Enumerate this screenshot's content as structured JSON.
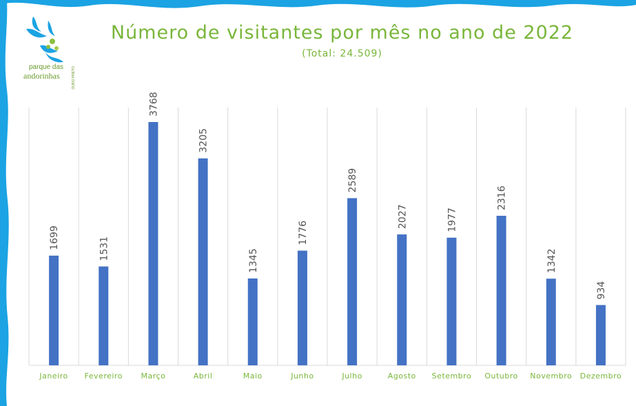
{
  "header": {
    "title": "Número de visitantes por mês no ano de 2022",
    "subtitle": "(Total: 24.509)"
  },
  "logo": {
    "line1": "parque das",
    "line2": "andorinhas",
    "line3": "OURO PRETO",
    "icon": "swallows-logo-icon"
  },
  "colors": {
    "bar": "#4472c4",
    "title": "#79b63a",
    "frame": "#1ba3e3",
    "grid": "#d9d9d9"
  },
  "chart_data": {
    "type": "bar",
    "title": "Número de visitantes por mês no ano de 2022",
    "subtitle": "(Total: 24.509)",
    "categories": [
      "Janeiro",
      "Fevereiro",
      "Março",
      "Abril",
      "Maio",
      "Junho",
      "Julho",
      "Agosto",
      "Setembro",
      "Outubro",
      "Novembro",
      "Dezembro"
    ],
    "values": [
      1699,
      1531,
      3768,
      3205,
      1345,
      1776,
      2589,
      2027,
      1977,
      2316,
      1342,
      934
    ],
    "data_labels": [
      "1699",
      "1531",
      "3768",
      "3205",
      "1345",
      "1776",
      "2589",
      "2027",
      "1977",
      "2316",
      "1342",
      "934"
    ],
    "ylim": [
      0,
      3768
    ],
    "grid": "vertical category separators",
    "legend": "none"
  }
}
